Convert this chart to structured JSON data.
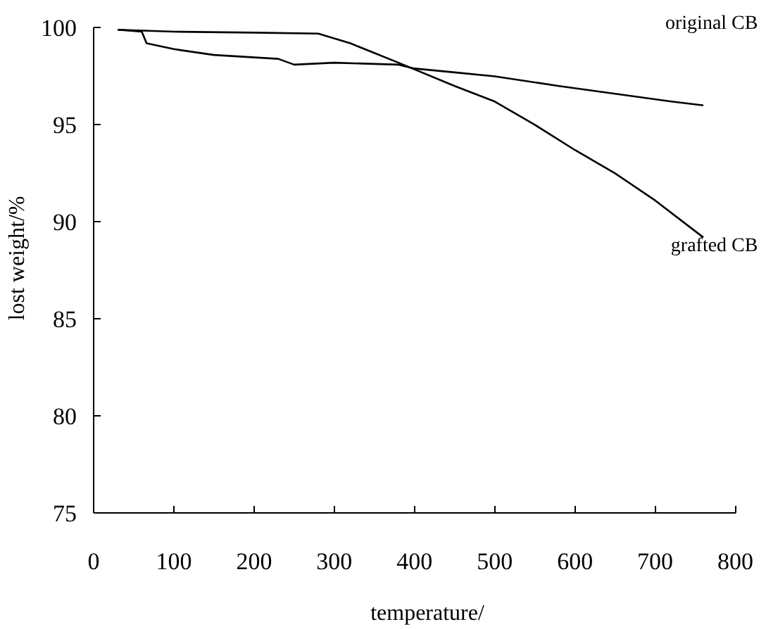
{
  "chart_data": {
    "type": "line",
    "xlabel": "temperature/",
    "ylabel": "lost weight/%",
    "xlim": [
      0,
      800
    ],
    "xticks": [
      0,
      100,
      200,
      300,
      400,
      500,
      600,
      700,
      800
    ],
    "ylim": [
      75,
      100
    ],
    "yticks": [
      75,
      80,
      85,
      90,
      95,
      100
    ],
    "grid": false,
    "marker": "none",
    "line_style": "solid",
    "series": [
      {
        "color": "#000000",
        "x": [
          30,
          60,
          66,
          100,
          150,
          230,
          250,
          300,
          380,
          400,
          450,
          500,
          580,
          650,
          720,
          760
        ],
        "values": [
          99.9,
          99.8,
          99.2,
          98.9,
          98.6,
          98.4,
          98.1,
          98.2,
          98.1,
          97.9,
          97.7,
          97.5,
          97.0,
          96.6,
          96.2,
          96.0
        ]
      },
      {
        "color": "#000000",
        "x": [
          30,
          100,
          200,
          280,
          320,
          380,
          450,
          500,
          550,
          600,
          650,
          700,
          760
        ],
        "values": [
          99.9,
          99.8,
          99.75,
          99.7,
          99.2,
          98.2,
          97.0,
          96.2,
          95.0,
          93.7,
          92.5,
          91.1,
          89.2
        ]
      }
    ],
    "annotations": [
      "original CB",
      "grafted CB"
    ]
  }
}
